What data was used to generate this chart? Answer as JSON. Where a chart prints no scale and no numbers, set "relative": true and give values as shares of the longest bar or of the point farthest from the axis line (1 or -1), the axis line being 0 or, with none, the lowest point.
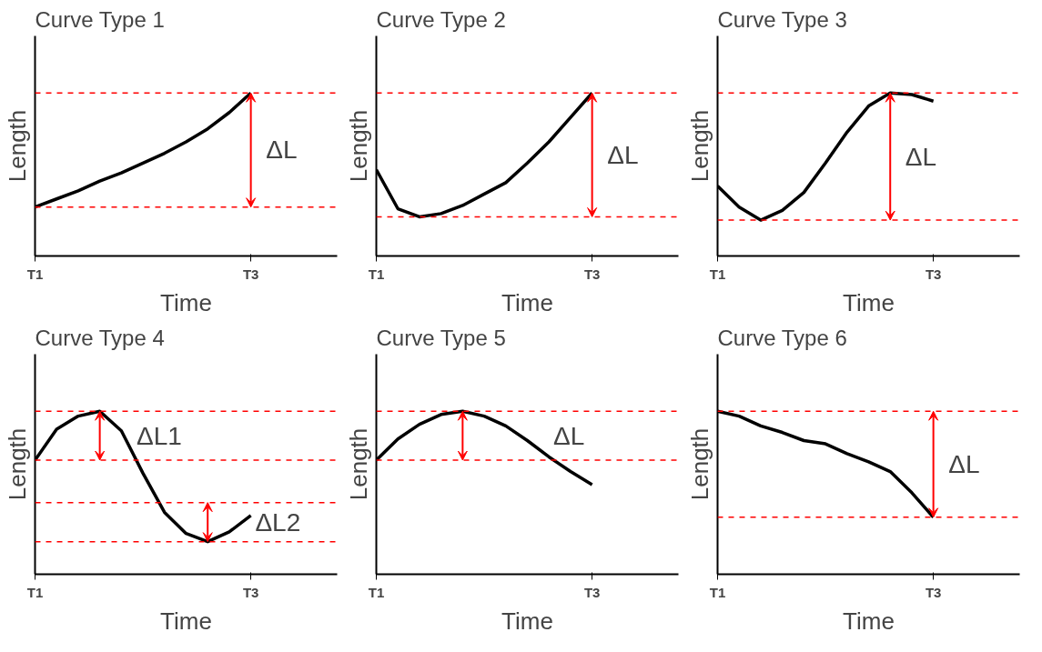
{
  "chart_data": [
    {
      "type": "line",
      "relative": true,
      "title": "Curve Type  1",
      "xlabel": "Time",
      "ylabel": "Length",
      "tick_labels": "x",
      "grid": false,
      "categories": [
        "T1",
        null,
        null,
        null,
        null,
        null,
        null,
        null,
        null,
        null,
        "T3",
        null,
        null,
        null,
        null
      ],
      "series": [
        {
          "color": "#000000",
          "values": [
            0.3,
            0.35,
            0.4,
            0.46,
            0.51,
            0.57,
            0.63,
            0.7,
            0.78,
            0.88,
            1.0,
            null,
            null,
            null,
            null
          ]
        }
      ],
      "ref_lines": [
        {
          "axis": "y",
          "value": 0.3,
          "color": "#ff0000",
          "line_style": "dashed"
        },
        {
          "axis": "y",
          "value": 1.0,
          "color": "#ff0000",
          "line_style": "dashed"
        }
      ],
      "annotations": [
        "ΔL"
      ]
    },
    {
      "type": "line",
      "relative": true,
      "title": "Curve Type 2",
      "xlabel": "Time",
      "ylabel": "Length",
      "tick_labels": "x",
      "grid": false,
      "categories": [
        "T1",
        null,
        null,
        null,
        null,
        null,
        null,
        null,
        null,
        null,
        "T3",
        null,
        null,
        null,
        null
      ],
      "series": [
        {
          "color": "#000000",
          "values": [
            0.53,
            0.29,
            0.24,
            0.26,
            0.31,
            0.38,
            0.45,
            0.57,
            0.7,
            0.85,
            1.0,
            null,
            null,
            null,
            null
          ]
        }
      ],
      "ref_lines": [
        {
          "axis": "y",
          "value": 0.24,
          "color": "#ff0000",
          "line_style": "dashed"
        },
        {
          "axis": "y",
          "value": 1.0,
          "color": "#ff0000",
          "line_style": "dashed"
        }
      ],
      "annotations": [
        "ΔL"
      ]
    },
    {
      "type": "line",
      "relative": true,
      "title": "Curve Type 3",
      "xlabel": "Time",
      "ylabel": "Length",
      "tick_labels": "x",
      "grid": false,
      "categories": [
        "T1",
        null,
        null,
        null,
        null,
        null,
        null,
        null,
        null,
        null,
        "T3",
        null,
        null,
        null,
        null
      ],
      "series": [
        {
          "color": "#000000",
          "values": [
            0.43,
            0.3,
            0.22,
            0.28,
            0.39,
            0.57,
            0.76,
            0.92,
            1.0,
            0.99,
            0.95,
            null,
            null,
            null,
            null
          ]
        }
      ],
      "ref_lines": [
        {
          "axis": "y",
          "value": 0.22,
          "color": "#ff0000",
          "line_style": "dashed"
        },
        {
          "axis": "y",
          "value": 1.0,
          "color": "#ff0000",
          "line_style": "dashed"
        }
      ],
      "annotations": [
        "ΔL"
      ]
    },
    {
      "type": "line",
      "relative": true,
      "title": "Curve Type 4",
      "xlabel": "Time",
      "ylabel": "Length",
      "tick_labels": "x",
      "grid": false,
      "categories": [
        "T1",
        null,
        null,
        null,
        null,
        null,
        null,
        null,
        null,
        null,
        "T3",
        null,
        null,
        null,
        null
      ],
      "series": [
        {
          "color": "#000000",
          "values": [
            0.7,
            0.89,
            0.97,
            1.0,
            0.88,
            0.62,
            0.38,
            0.25,
            0.2,
            0.26,
            0.36,
            null,
            null,
            null,
            null
          ]
        }
      ],
      "ref_lines": [
        {
          "axis": "y",
          "value": 0.7,
          "color": "#ff0000",
          "line_style": "dashed"
        },
        {
          "axis": "y",
          "value": 1.0,
          "color": "#ff0000",
          "line_style": "dashed"
        },
        {
          "axis": "y",
          "value": 0.2,
          "color": "#ff0000",
          "line_style": "dashed"
        },
        {
          "axis": "y",
          "value": 0.44,
          "color": "#ff0000",
          "line_style": "dashed"
        }
      ],
      "annotations": [
        "ΔL1",
        "ΔL2"
      ]
    },
    {
      "type": "line",
      "relative": true,
      "title": "Curve Type 5",
      "xlabel": "Time",
      "ylabel": "Length",
      "tick_labels": "x",
      "grid": false,
      "categories": [
        "T1",
        null,
        null,
        null,
        null,
        null,
        null,
        null,
        null,
        null,
        "T3",
        null,
        null,
        null,
        null
      ],
      "series": [
        {
          "color": "#000000",
          "values": [
            0.7,
            0.83,
            0.92,
            0.98,
            1.0,
            0.97,
            0.91,
            0.82,
            0.72,
            0.63,
            0.55,
            null,
            null,
            null,
            null
          ]
        }
      ],
      "ref_lines": [
        {
          "axis": "y",
          "value": 0.7,
          "color": "#ff0000",
          "line_style": "dashed"
        },
        {
          "axis": "y",
          "value": 1.0,
          "color": "#ff0000",
          "line_style": "dashed"
        }
      ],
      "annotations": [
        "ΔL"
      ]
    },
    {
      "type": "line",
      "relative": true,
      "title": "Curve Type  6",
      "xlabel": "Time",
      "ylabel": "Length",
      "tick_labels": "x",
      "grid": false,
      "categories": [
        "T1",
        null,
        null,
        null,
        null,
        null,
        null,
        null,
        null,
        null,
        "T3",
        null,
        null,
        null,
        null
      ],
      "series": [
        {
          "color": "#000000",
          "values": [
            1.0,
            0.97,
            0.91,
            0.87,
            0.82,
            0.8,
            0.74,
            0.69,
            0.63,
            0.5,
            0.35,
            null,
            null,
            null,
            null
          ]
        }
      ],
      "ref_lines": [
        {
          "axis": "y",
          "value": 0.35,
          "color": "#ff0000",
          "line_style": "dashed"
        },
        {
          "axis": "y",
          "value": 1.0,
          "color": "#ff0000",
          "line_style": "dashed"
        }
      ],
      "annotations": [
        "ΔL"
      ]
    }
  ]
}
